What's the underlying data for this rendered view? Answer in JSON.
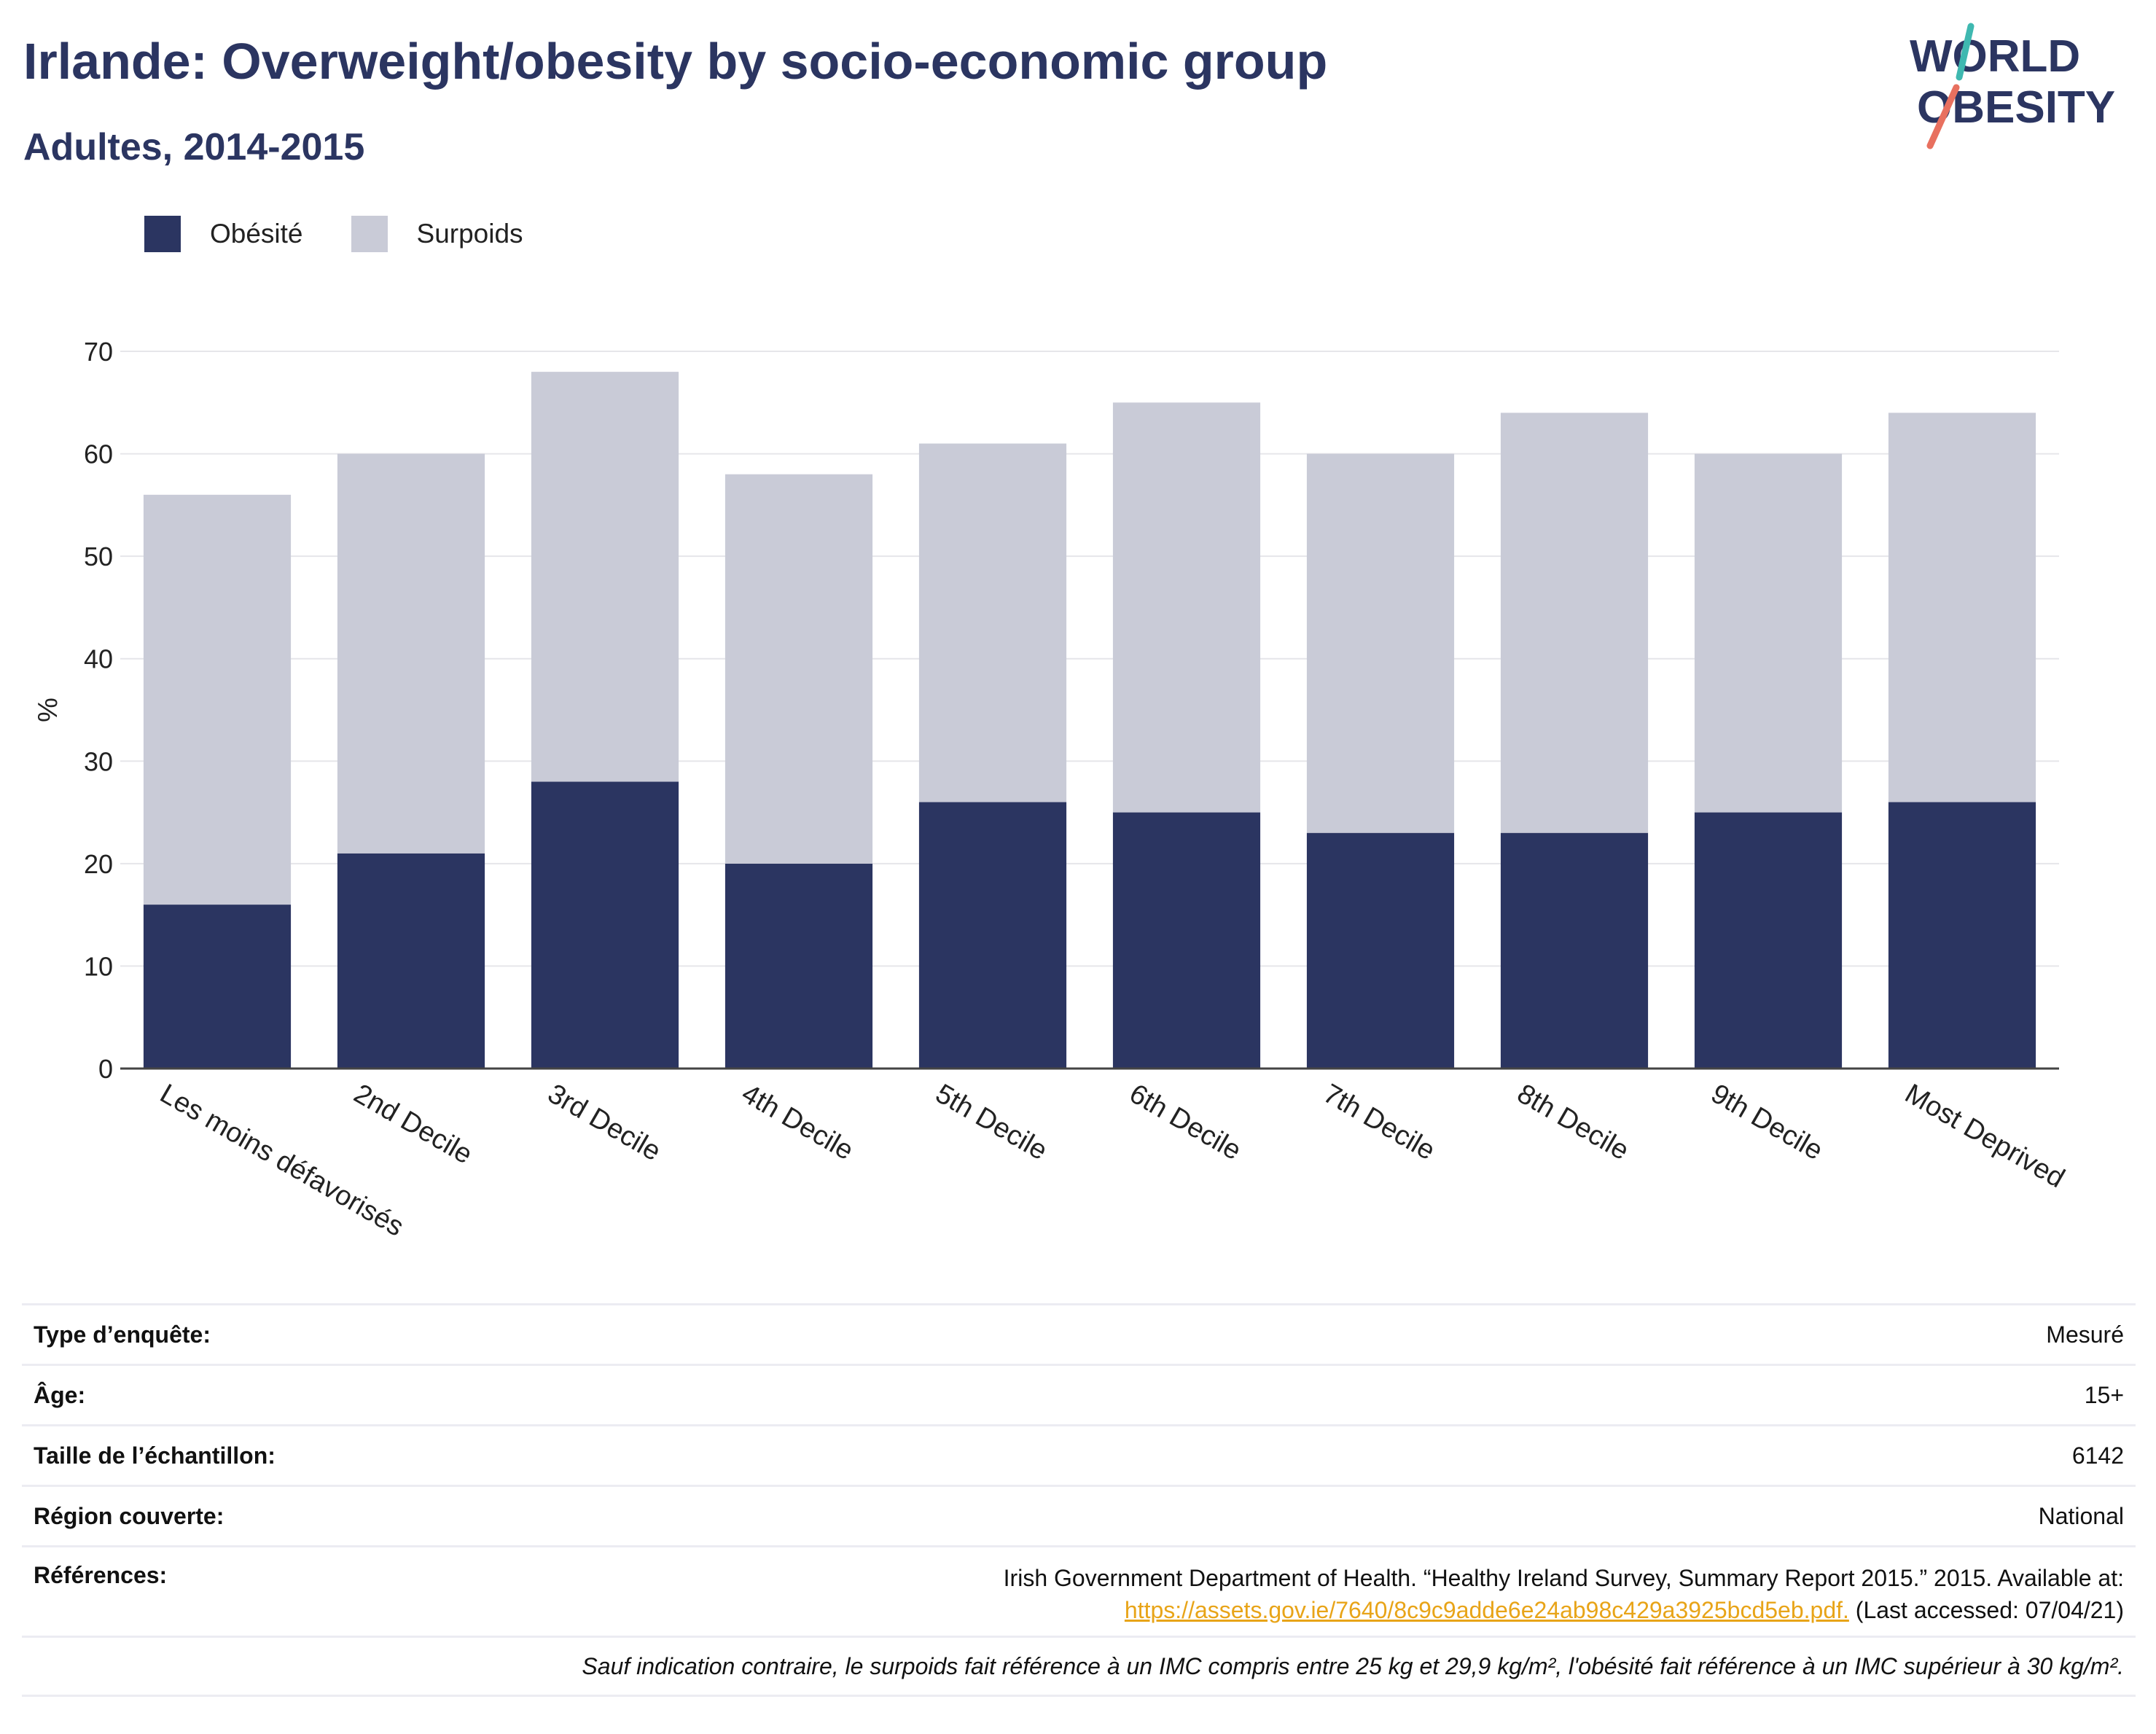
{
  "header": {
    "title": "Irlande: Overweight/obesity by socio-economic group",
    "subtitle": "Adultes, 2014-2015"
  },
  "logo": {
    "line1": "WORLD",
    "line2": "OBESITY"
  },
  "colors": {
    "obesity": "#2b3561",
    "overweight": "#c9cbd7",
    "title": "#2b3561",
    "link": "#e8a418",
    "logo_slash_top": "#3fb8b0",
    "logo_slash_bottom": "#e8705f"
  },
  "legend": {
    "obesity_label": "Obésité",
    "overweight_label": "Surpoids"
  },
  "chart_data": {
    "type": "bar",
    "stacked": true,
    "categories": [
      "Les moins défavorisés",
      "2nd Decile",
      "3rd Decile",
      "4th Decile",
      "5th Decile",
      "6th Decile",
      "7th Decile",
      "8th Decile",
      "9th Decile",
      "Most Deprived"
    ],
    "series": [
      {
        "name": "Obésité",
        "values": [
          16,
          21,
          28,
          20,
          26,
          25,
          23,
          23,
          25,
          26
        ]
      },
      {
        "name": "Surpoids",
        "values": [
          40,
          39,
          40,
          38,
          35,
          40,
          37,
          41,
          35,
          38
        ]
      }
    ],
    "ylabel": "%",
    "ylim": [
      0,
      70
    ],
    "yticks": [
      0,
      10,
      20,
      30,
      40,
      50,
      60,
      70
    ],
    "grid": true,
    "legend_position": "top-left"
  },
  "info": {
    "survey_type_label": "Type d’enquête:",
    "survey_type_value": "Mesuré",
    "age_label": "Âge:",
    "age_value": "15+",
    "sample_label": "Taille de l’échantillon:",
    "sample_value": "6142",
    "region_label": "Région couverte:",
    "region_value": "National",
    "refs_label": "Références:",
    "refs_text": "Irish Government Department of Health. “Healthy Ireland Survey, Summary Report 2015.” 2015. Available at:",
    "refs_link": "https://assets.gov.ie/7640/8c9c9adde6e24ab98c429a3925bcd5eb.pdf.",
    "refs_accessed": "(Last accessed: 07/04/21)",
    "note": "Sauf indication contraire, le surpoids fait référence à un IMC compris entre 25 kg et 29,9 kg/m², l'obésité fait référence à un IMC supérieur à 30 kg/m²."
  }
}
